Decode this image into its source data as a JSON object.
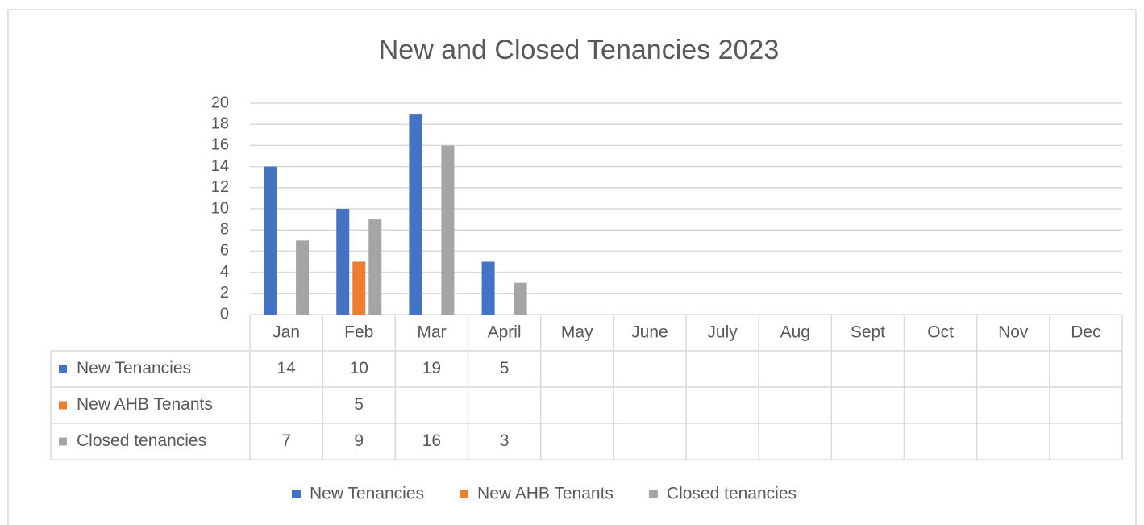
{
  "chart_data": {
    "type": "bar",
    "title": "New and Closed Tenancies 2023",
    "categories": [
      "Jan",
      "Feb",
      "Mar",
      "April",
      "May",
      "June",
      "July",
      "Aug",
      "Sept",
      "Oct",
      "Nov",
      "Dec"
    ],
    "series": [
      {
        "name": "New Tenancies",
        "color": "#4472c4",
        "values": [
          14,
          10,
          19,
          5,
          null,
          null,
          null,
          null,
          null,
          null,
          null,
          null
        ]
      },
      {
        "name": "New AHB Tenants",
        "color": "#ed7d31",
        "values": [
          null,
          5,
          null,
          null,
          null,
          null,
          null,
          null,
          null,
          null,
          null,
          null
        ]
      },
      {
        "name": "Closed tenancies",
        "color": "#a5a5a5",
        "values": [
          7,
          9,
          16,
          3,
          null,
          null,
          null,
          null,
          null,
          null,
          null,
          null
        ]
      }
    ],
    "ylim": [
      0,
      20
    ],
    "yticks": [
      0,
      2,
      4,
      6,
      8,
      10,
      12,
      14,
      16,
      18,
      20
    ],
    "grid": true,
    "legend": "bottom",
    "data_table": true
  }
}
